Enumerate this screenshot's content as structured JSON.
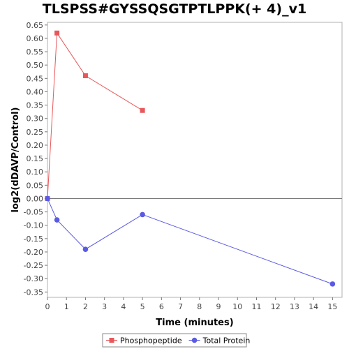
{
  "chart_data": {
    "type": "line",
    "title": "TLSPSS#GYSSQSGTPTLPPK(+ 4)_v1",
    "xlabel": "Time (minutes)",
    "ylabel": "log2(dDAVP/Control)",
    "xlim": [
      0,
      15.5
    ],
    "ylim": [
      -0.37,
      0.66
    ],
    "xticks": [
      0,
      1,
      2,
      3,
      4,
      5,
      6,
      7,
      8,
      9,
      10,
      11,
      12,
      13,
      14,
      15
    ],
    "yticks": [
      0.65,
      0.6,
      0.55,
      0.5,
      0.45,
      0.4,
      0.35,
      0.3,
      0.25,
      0.2,
      0.15,
      0.1,
      0.05,
      0.0,
      -0.05,
      -0.1,
      -0.15,
      -0.2,
      -0.25,
      -0.3,
      -0.35
    ],
    "yticks_text": [
      "0.65",
      "0.60",
      "0.55",
      "0.50",
      "0.45",
      "0.40",
      "0.35",
      "0.30",
      "0.25",
      "0.20",
      "0.15",
      "0.10",
      "0.05",
      "0.00",
      "-0.05",
      "-0.10",
      "-0.15",
      "-0.20",
      "-0.25",
      "-0.30",
      "-0.35"
    ],
    "grid": false,
    "zero_line": true,
    "legend_position": "bottom",
    "series": [
      {
        "name": "Phosphopeptide",
        "color": "#e8585a",
        "marker": "square",
        "x": [
          0,
          0.5,
          2,
          5
        ],
        "y": [
          0.0,
          0.62,
          0.46,
          0.33
        ]
      },
      {
        "name": "Total Protein",
        "color": "#5a5ae6",
        "marker": "circle",
        "x": [
          0,
          0.5,
          2,
          5,
          15
        ],
        "y": [
          0.0,
          -0.08,
          -0.19,
          -0.06,
          -0.32
        ]
      }
    ]
  }
}
